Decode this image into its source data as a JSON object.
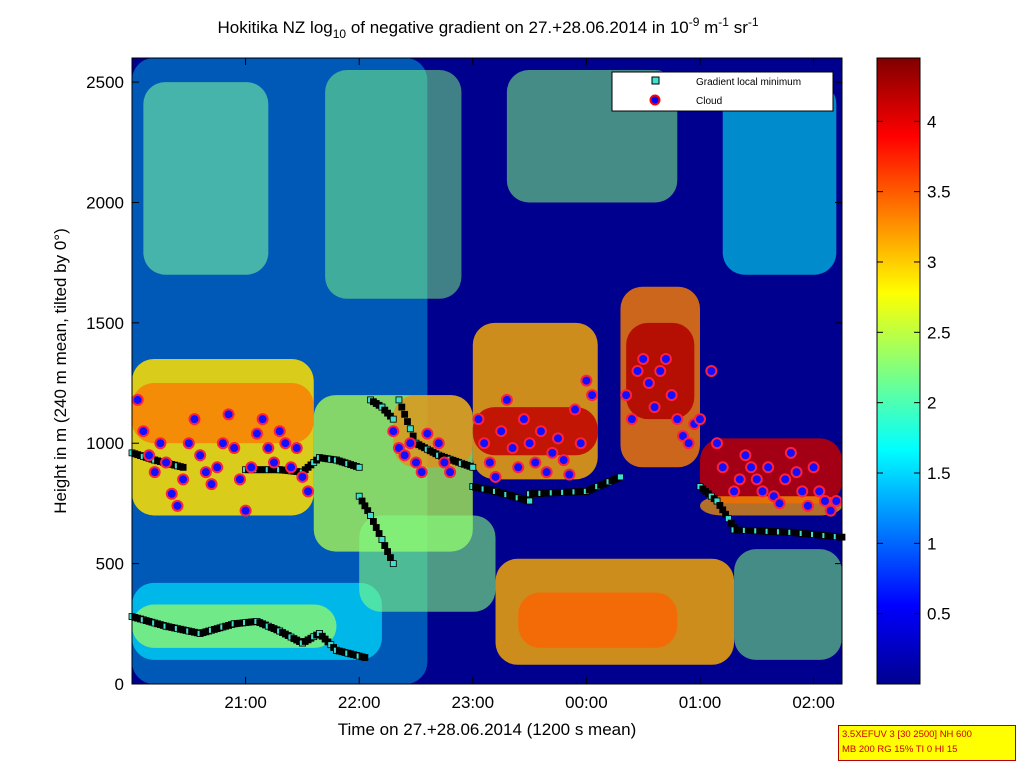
{
  "chart_data": {
    "type": "heatmap",
    "title": {
      "prefix": "Hokitika NZ log",
      "prefix_sub": "10",
      "middle": " of negative gradient on 27.+28.06.2014 in 10",
      "unit_exp1": "-9",
      "unit_mid": " m",
      "unit_exp2": "-1",
      "unit_mid2": " sr",
      "unit_exp3": "-1"
    },
    "xlabel": "Time on 27.+28.06.2014 (1200 s mean)",
    "ylabel": "Height in m (240 m mean, tilted by 0°)",
    "x_range_hours": [
      20.0,
      26.25
    ],
    "x_ticks": [
      {
        "h": 21,
        "label": "21:00"
      },
      {
        "h": 22,
        "label": "22:00"
      },
      {
        "h": 23,
        "label": "23:00"
      },
      {
        "h": 24,
        "label": "00:00"
      },
      {
        "h": 25,
        "label": "01:00"
      },
      {
        "h": 26,
        "label": "02:00"
      }
    ],
    "ylim": [
      0,
      2600
    ],
    "y_ticks": [
      0,
      500,
      1000,
      1500,
      2000,
      2500
    ],
    "colorbar": {
      "range": [
        0,
        4.45
      ],
      "ticks": [
        0.5,
        1,
        1.5,
        2,
        2.5,
        3,
        3.5,
        4
      ],
      "colormap": "jet"
    },
    "legend": {
      "position": "top-right",
      "entries": [
        {
          "label": "Gradient local minimum",
          "marker": "square",
          "color": "#40e0d0"
        },
        {
          "label": "Cloud",
          "marker": "circle",
          "color": "#ff0000"
        }
      ]
    },
    "series": [
      {
        "name": "Gradient local minimum",
        "segments": [
          {
            "h0": 20.0,
            "h1": 22.05,
            "points": [
              [
                20.0,
                280
              ],
              [
                20.3,
                240
              ],
              [
                20.6,
                210
              ],
              [
                20.9,
                250
              ],
              [
                21.1,
                260
              ],
              [
                21.3,
                220
              ],
              [
                21.5,
                170
              ],
              [
                21.65,
                210
              ],
              [
                21.8,
                140
              ],
              [
                22.05,
                110
              ]
            ]
          },
          {
            "h0": 20.0,
            "h1": 20.45,
            "points": [
              [
                20.0,
                960
              ],
              [
                20.2,
                930
              ],
              [
                20.45,
                900
              ]
            ]
          },
          {
            "h0": 21.0,
            "h1": 22.0,
            "points": [
              [
                21.0,
                890
              ],
              [
                21.3,
                890
              ],
              [
                21.5,
                880
              ],
              [
                21.65,
                940
              ],
              [
                21.8,
                930
              ],
              [
                22.0,
                900
              ]
            ]
          },
          {
            "h0": 22.1,
            "h1": 22.3,
            "points": [
              [
                22.1,
                1180
              ],
              [
                22.2,
                1150
              ],
              [
                22.3,
                1100
              ]
            ]
          },
          {
            "h0": 22.0,
            "h1": 22.3,
            "points": [
              [
                22.0,
                780
              ],
              [
                22.1,
                700
              ],
              [
                22.2,
                600
              ],
              [
                22.3,
                500
              ]
            ]
          },
          {
            "h0": 22.35,
            "h1": 23.0,
            "points": [
              [
                22.35,
                1180
              ],
              [
                22.5,
                1000
              ],
              [
                22.7,
                950
              ],
              [
                23.0,
                900
              ]
            ]
          },
          {
            "h0": 23.0,
            "h1": 23.5,
            "points": [
              [
                23.0,
                820
              ],
              [
                23.2,
                800
              ],
              [
                23.5,
                760
              ]
            ]
          },
          {
            "h0": 23.5,
            "h1": 24.3,
            "points": [
              [
                23.5,
                790
              ],
              [
                24.0,
                800
              ],
              [
                24.3,
                860
              ]
            ]
          },
          {
            "h0": 25.0,
            "h1": 25.3,
            "points": [
              [
                25.0,
                820
              ],
              [
                25.15,
                760
              ],
              [
                25.3,
                650
              ]
            ]
          },
          {
            "h0": 25.3,
            "h1": 26.25,
            "points": [
              [
                25.3,
                640
              ],
              [
                25.8,
                630
              ],
              [
                26.25,
                610
              ]
            ]
          }
        ]
      },
      {
        "name": "Cloud",
        "points": [
          [
            20.05,
            1180
          ],
          [
            20.1,
            1050
          ],
          [
            20.15,
            950
          ],
          [
            20.2,
            880
          ],
          [
            20.25,
            1000
          ],
          [
            20.3,
            920
          ],
          [
            20.35,
            790
          ],
          [
            20.4,
            740
          ],
          [
            20.45,
            850
          ],
          [
            20.5,
            1000
          ],
          [
            20.55,
            1100
          ],
          [
            20.6,
            950
          ],
          [
            20.65,
            880
          ],
          [
            20.7,
            830
          ],
          [
            20.75,
            900
          ],
          [
            20.8,
            1000
          ],
          [
            20.85,
            1120
          ],
          [
            20.9,
            980
          ],
          [
            20.95,
            850
          ],
          [
            21.0,
            720
          ],
          [
            21.05,
            900
          ],
          [
            21.1,
            1040
          ],
          [
            21.15,
            1100
          ],
          [
            21.2,
            980
          ],
          [
            21.25,
            920
          ],
          [
            21.3,
            1050
          ],
          [
            21.35,
            1000
          ],
          [
            21.4,
            900
          ],
          [
            21.45,
            980
          ],
          [
            21.5,
            860
          ],
          [
            21.55,
            800
          ],
          [
            22.3,
            1050
          ],
          [
            22.35,
            980
          ],
          [
            22.4,
            950
          ],
          [
            22.45,
            1000
          ],
          [
            22.5,
            920
          ],
          [
            22.55,
            880
          ],
          [
            22.6,
            1040
          ],
          [
            22.7,
            1000
          ],
          [
            22.75,
            920
          ],
          [
            22.8,
            880
          ],
          [
            23.05,
            1100
          ],
          [
            23.1,
            1000
          ],
          [
            23.15,
            920
          ],
          [
            23.2,
            860
          ],
          [
            23.25,
            1050
          ],
          [
            23.3,
            1180
          ],
          [
            23.35,
            980
          ],
          [
            23.4,
            900
          ],
          [
            23.45,
            1100
          ],
          [
            23.5,
            1000
          ],
          [
            23.55,
            920
          ],
          [
            23.6,
            1050
          ],
          [
            23.65,
            880
          ],
          [
            23.7,
            960
          ],
          [
            23.75,
            1020
          ],
          [
            23.8,
            930
          ],
          [
            23.85,
            870
          ],
          [
            23.9,
            1140
          ],
          [
            23.95,
            1000
          ],
          [
            24.0,
            1260
          ],
          [
            24.05,
            1200
          ],
          [
            24.35,
            1200
          ],
          [
            24.4,
            1100
          ],
          [
            24.45,
            1300
          ],
          [
            24.5,
            1350
          ],
          [
            24.55,
            1250
          ],
          [
            24.6,
            1150
          ],
          [
            24.65,
            1300
          ],
          [
            24.7,
            1350
          ],
          [
            24.75,
            1200
          ],
          [
            24.8,
            1100
          ],
          [
            24.85,
            1030
          ],
          [
            24.9,
            1000
          ],
          [
            24.95,
            1080
          ],
          [
            25.0,
            1100
          ],
          [
            25.1,
            1300
          ],
          [
            25.15,
            1000
          ],
          [
            25.2,
            900
          ],
          [
            25.3,
            800
          ],
          [
            25.35,
            850
          ],
          [
            25.4,
            950
          ],
          [
            25.45,
            900
          ],
          [
            25.5,
            850
          ],
          [
            25.55,
            800
          ],
          [
            25.6,
            900
          ],
          [
            25.65,
            780
          ],
          [
            25.7,
            750
          ],
          [
            25.75,
            850
          ],
          [
            25.8,
            960
          ],
          [
            25.85,
            880
          ],
          [
            25.9,
            800
          ],
          [
            25.95,
            740
          ],
          [
            26.0,
            900
          ],
          [
            26.05,
            800
          ],
          [
            26.1,
            760
          ],
          [
            26.15,
            720
          ],
          [
            26.2,
            760
          ]
        ]
      }
    ]
  },
  "info_box": {
    "line1": "3.5XEFUV 3 [30 2500] NH 600",
    "line2": "MB 200 RG 15% TI 0 HI 15"
  }
}
